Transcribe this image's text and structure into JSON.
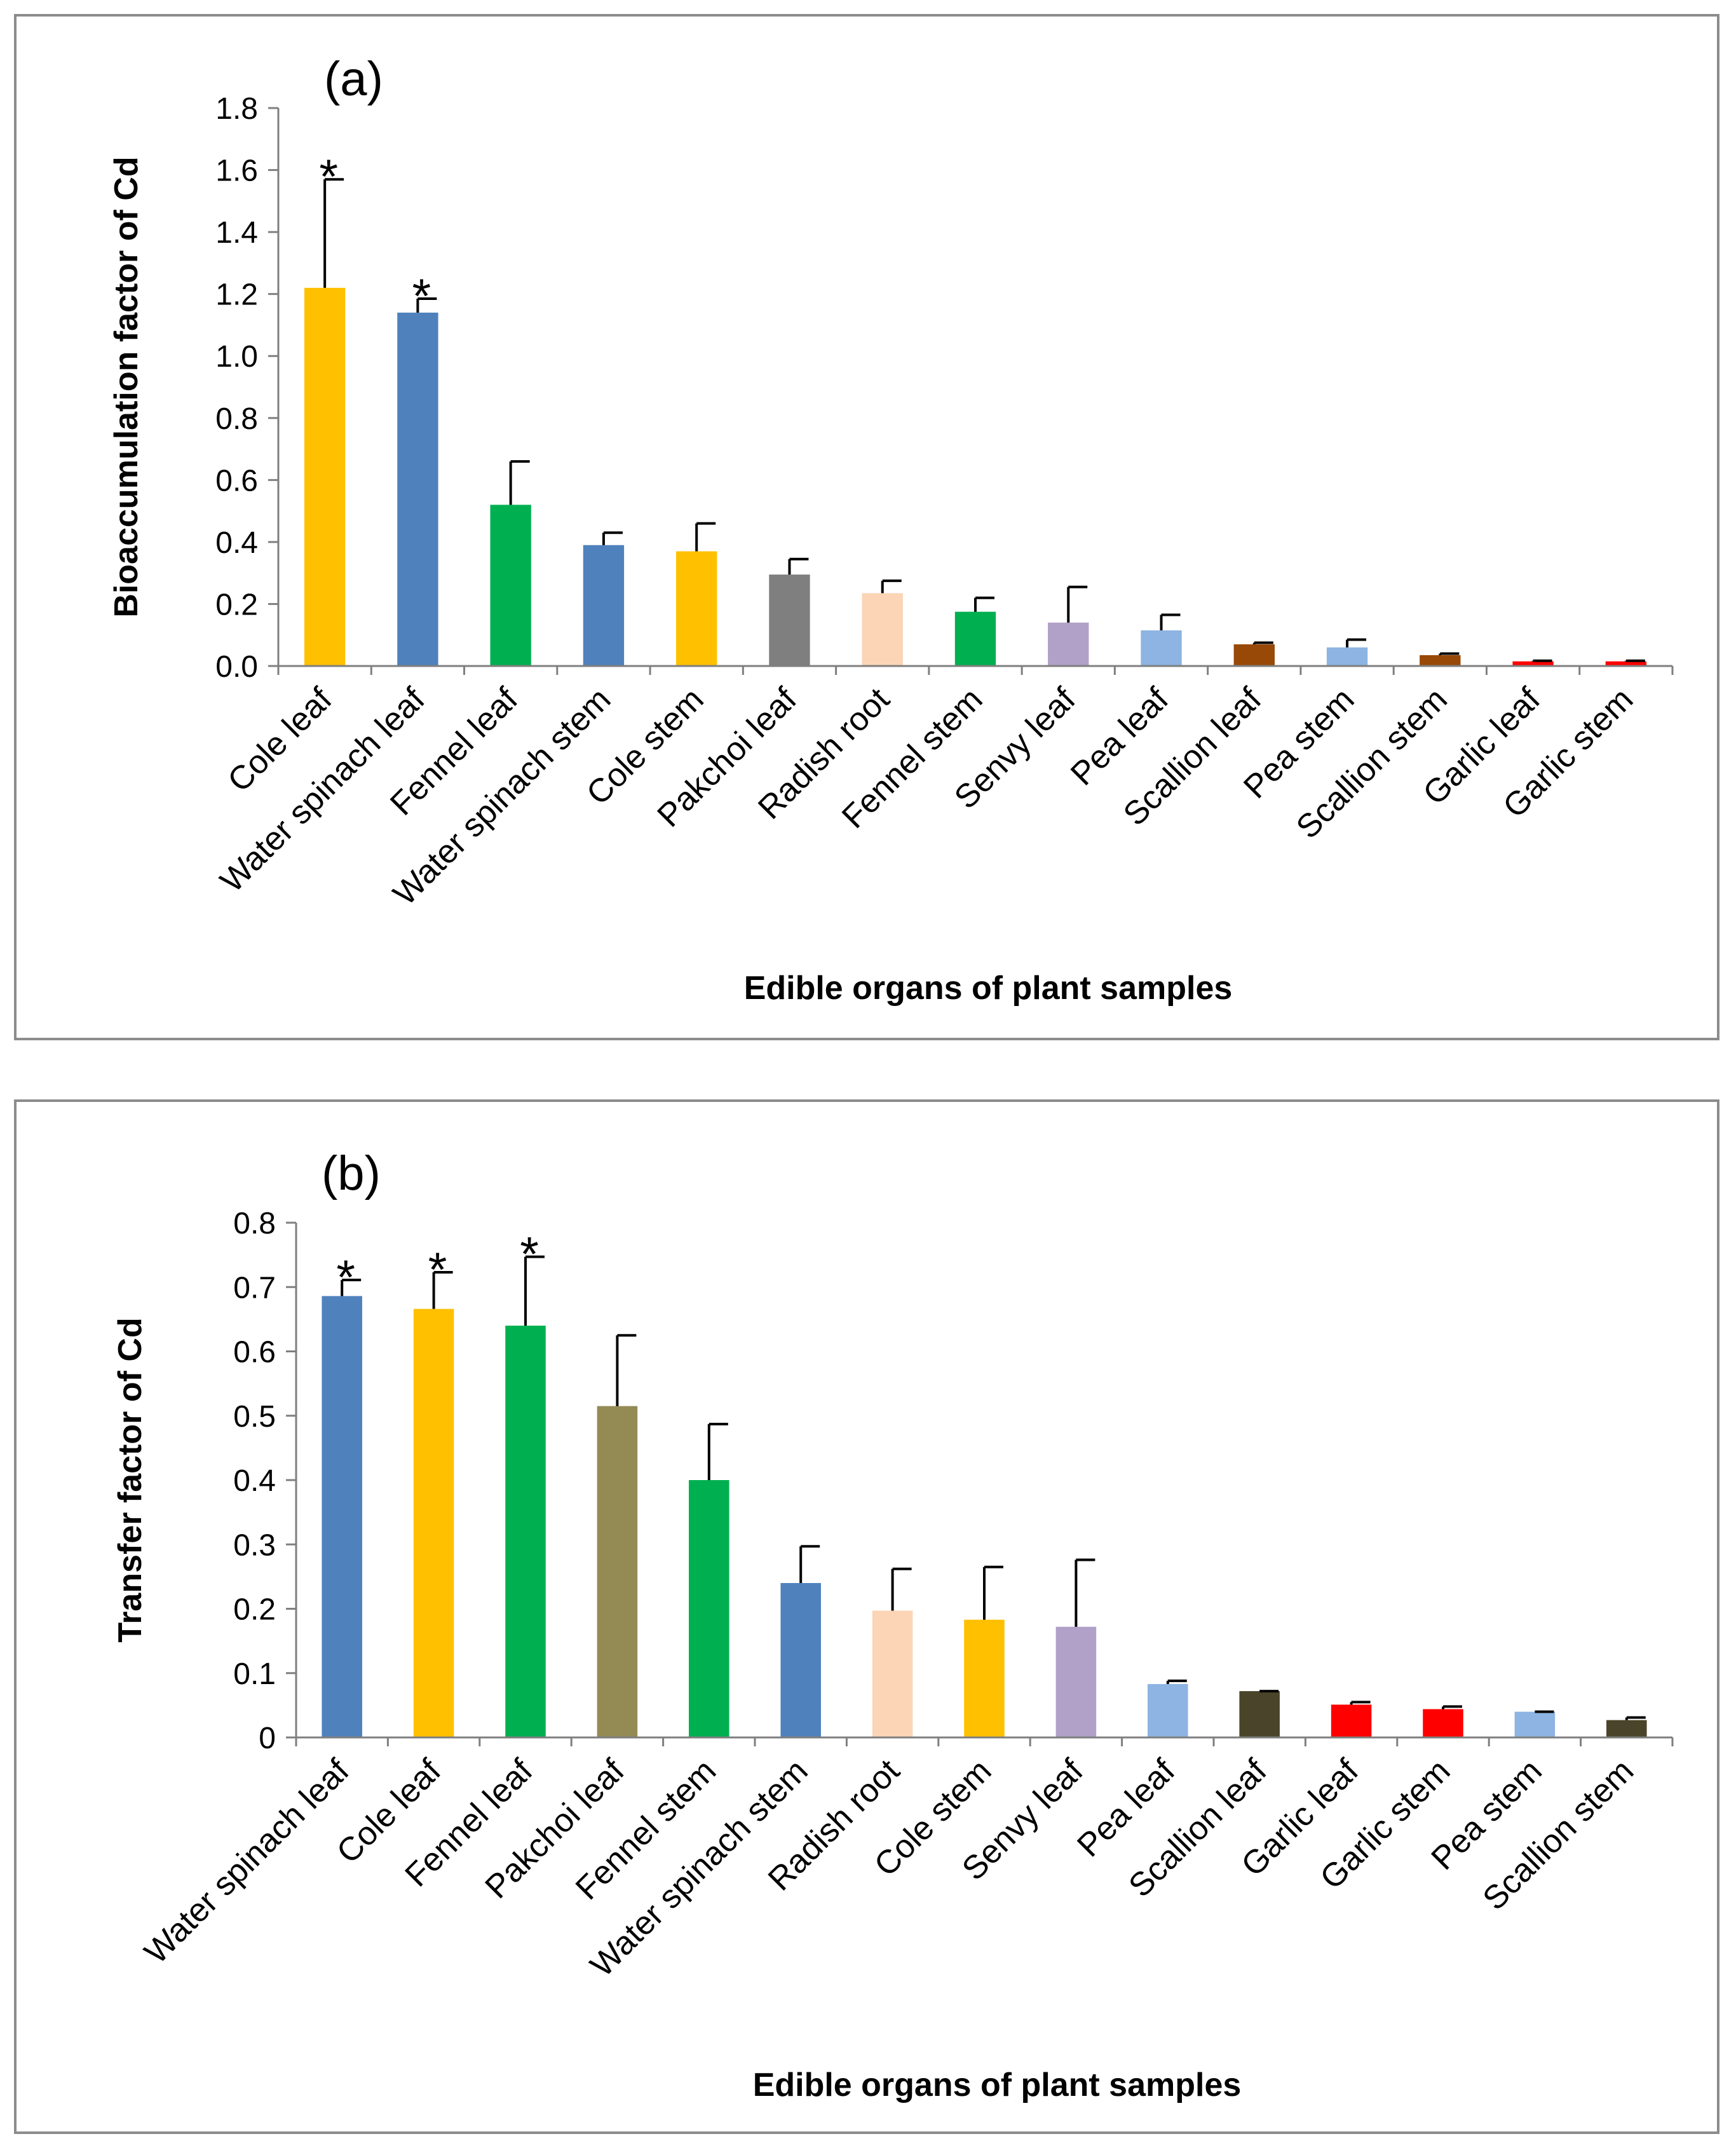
{
  "chart_data": [
    {
      "type": "bar",
      "panel_label": "(a)",
      "ylabel": "Bioaccumulation factor of Cd",
      "xlabel": "Edible organs of plant samples",
      "ylim": [
        0,
        1.8
      ],
      "yticks": [
        "0.0",
        "0.2",
        "0.4",
        "0.6",
        "0.8",
        "1.0",
        "1.2",
        "1.4",
        "1.6",
        "1.8"
      ],
      "categories": [
        "Cole leaf",
        "Water spinach leaf",
        "Fennel leaf",
        "Water spinach stem",
        "Cole stem",
        "Pakchoi leaf",
        "Radish root",
        "Fennel stem",
        "Senvy leaf",
        "Pea leaf",
        "Scallion leaf",
        "Pea stem",
        "Scallion stem",
        "Garlic leaf",
        "Garlic stem"
      ],
      "values": [
        1.22,
        1.14,
        0.52,
        0.39,
        0.37,
        0.295,
        0.235,
        0.175,
        0.14,
        0.115,
        0.07,
        0.06,
        0.035,
        0.015,
        0.015
      ],
      "errors": [
        0.35,
        0.045,
        0.14,
        0.04,
        0.09,
        0.05,
        0.04,
        0.045,
        0.115,
        0.05,
        0.005,
        0.025,
        0.005,
        0.002,
        0.002
      ],
      "colors": [
        "#FFC000",
        "#4F81BD",
        "#00B050",
        "#4F81BD",
        "#FFC000",
        "#7F7F7F",
        "#FBD5B5",
        "#00B050",
        "#B1A0C7",
        "#8DB4E2",
        "#984807",
        "#8DB4E2",
        "#984807",
        "#FF0000",
        "#FF0000"
      ],
      "significant": [
        true,
        true,
        false,
        false,
        false,
        false,
        false,
        false,
        false,
        false,
        false,
        false,
        false,
        false,
        false
      ],
      "marker": "*"
    },
    {
      "type": "bar",
      "panel_label": "(b)",
      "ylabel": "Transfer factor of Cd",
      "xlabel": "Edible organs of plant samples",
      "ylim": [
        0,
        0.8
      ],
      "yticks": [
        "0",
        "0.1",
        "0.2",
        "0.3",
        "0.4",
        "0.5",
        "0.6",
        "0.7",
        "0.8"
      ],
      "categories": [
        "Water spinach leaf",
        "Cole leaf",
        "Fennel leaf",
        "Pakchoi leaf",
        "Fennel stem",
        "Water spinach stem",
        "Radish root",
        "Cole stem",
        "Senvy leaf",
        "Pea leaf",
        "Scallion leaf",
        "Garlic leaf",
        "Garlic stem",
        "Pea stem",
        "Scallion stem"
      ],
      "values": [
        0.686,
        0.666,
        0.64,
        0.515,
        0.4,
        0.24,
        0.197,
        0.183,
        0.172,
        0.083,
        0.072,
        0.051,
        0.044,
        0.04,
        0.027
      ],
      "errors": [
        0.025,
        0.057,
        0.107,
        0.11,
        0.087,
        0.057,
        0.065,
        0.082,
        0.104,
        0.005,
        0.0,
        0.004,
        0.004,
        0.0,
        0.004
      ],
      "colors": [
        "#4F81BD",
        "#FFC000",
        "#00B050",
        "#948A54",
        "#00B050",
        "#4F81BD",
        "#FBD5B5",
        "#FFC000",
        "#B1A0C7",
        "#8DB4E2",
        "#4A452A",
        "#FF0000",
        "#FF0000",
        "#8DB4E2",
        "#4A452A"
      ],
      "significant": [
        true,
        true,
        true,
        false,
        false,
        false,
        false,
        false,
        false,
        false,
        false,
        false,
        false,
        false,
        false
      ],
      "marker": "*"
    }
  ]
}
